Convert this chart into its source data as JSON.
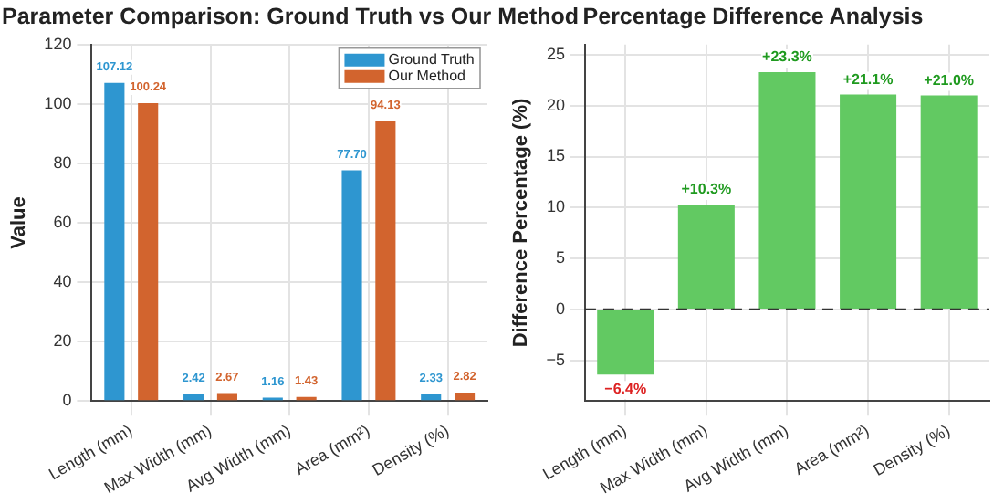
{
  "chart_data": [
    {
      "type": "bar",
      "title": "Parameter Comparison: Ground Truth vs Our Method",
      "ylabel": "Value",
      "categories": [
        "Length (mm)",
        "Max Width (mm)",
        "Avg Width (mm)",
        "Area (mm²)",
        "Density (%)"
      ],
      "series": [
        {
          "name": "Ground Truth",
          "color": "#2e96d0",
          "values": [
            107.12,
            2.42,
            1.16,
            77.7,
            2.33
          ],
          "value_labels": [
            "107.12",
            "2.42",
            "1.16",
            "77.70",
            "2.33"
          ]
        },
        {
          "name": "Our Method",
          "color": "#d2642e",
          "values": [
            100.24,
            2.67,
            1.43,
            94.13,
            2.82
          ],
          "value_labels": [
            "100.24",
            "2.67",
            "1.43",
            "94.13",
            "2.82"
          ]
        }
      ],
      "ylim": [
        0,
        120
      ],
      "yticks": [
        0,
        20,
        40,
        60,
        80,
        100,
        120
      ],
      "grid": true,
      "legend": "top right"
    },
    {
      "type": "bar",
      "title": "Percentage Difference Analysis",
      "ylabel": "Difference Percentage (%)",
      "categories": [
        "Length (mm)",
        "Max Width (mm)",
        "Avg Width (mm)",
        "Area (mm²)",
        "Density (%)"
      ],
      "series": [
        {
          "color": "#62c962",
          "values": [
            -6.4,
            10.3,
            23.3,
            21.1,
            21.0
          ],
          "value_labels": [
            "−6.4%",
            "+10.3%",
            "+23.3%",
            "+21.1%",
            "+21.0%"
          ]
        }
      ],
      "ylim": [
        -9,
        26
      ],
      "yticks": [
        -5,
        0,
        5,
        10,
        15,
        20,
        25
      ],
      "grid": true,
      "ref_lines": [
        {
          "axis": "y",
          "value": 0,
          "color": "#333333",
          "line_style": "dashed"
        }
      ]
    }
  ]
}
